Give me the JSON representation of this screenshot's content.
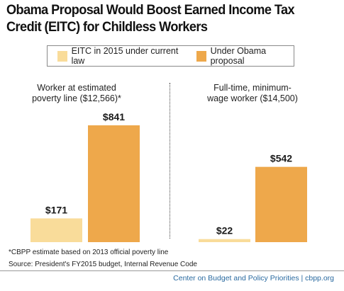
{
  "title": "Obama Proposal Would Boost Earned Income Tax Credit (EITC) for Childless Workers",
  "legend": [
    {
      "label": "EITC in 2015 under current law",
      "color": "#f9dc9a"
    },
    {
      "label": "Under Obama proposal",
      "color": "#eea84b"
    }
  ],
  "panels": [
    {
      "label_line1": "Worker at estimated",
      "label_line2": "poverty line ($12,566)*"
    },
    {
      "label_line1": "Full-time, minimum-",
      "label_line2": "wage worker ($14,500)"
    }
  ],
  "footnote": "*CBPP estimate based on 2013 official poverty line",
  "source": "Source: President's FY2015 budget, Internal Revenue Code",
  "credit": "Center on Budget and Policy Priorities | cbpp.org",
  "chart_data": {
    "type": "bar",
    "title": "Obama Proposal Would Boost Earned Income Tax Credit (EITC) for Childless Workers",
    "categories": [
      "Worker at estimated poverty line ($12,566)*",
      "Full-time, minimum-wage worker ($14,500)"
    ],
    "series": [
      {
        "name": "EITC in 2015 under current law",
        "values": [
          171,
          22
        ],
        "labels": [
          "$171",
          "$22"
        ],
        "color": "#f9dc9a"
      },
      {
        "name": "Under Obama proposal",
        "values": [
          841,
          542
        ],
        "labels": [
          "$841",
          "$542"
        ],
        "color": "#eea84b"
      }
    ],
    "ylim": [
      0,
      841
    ],
    "grid": false,
    "legend_position": "top"
  }
}
